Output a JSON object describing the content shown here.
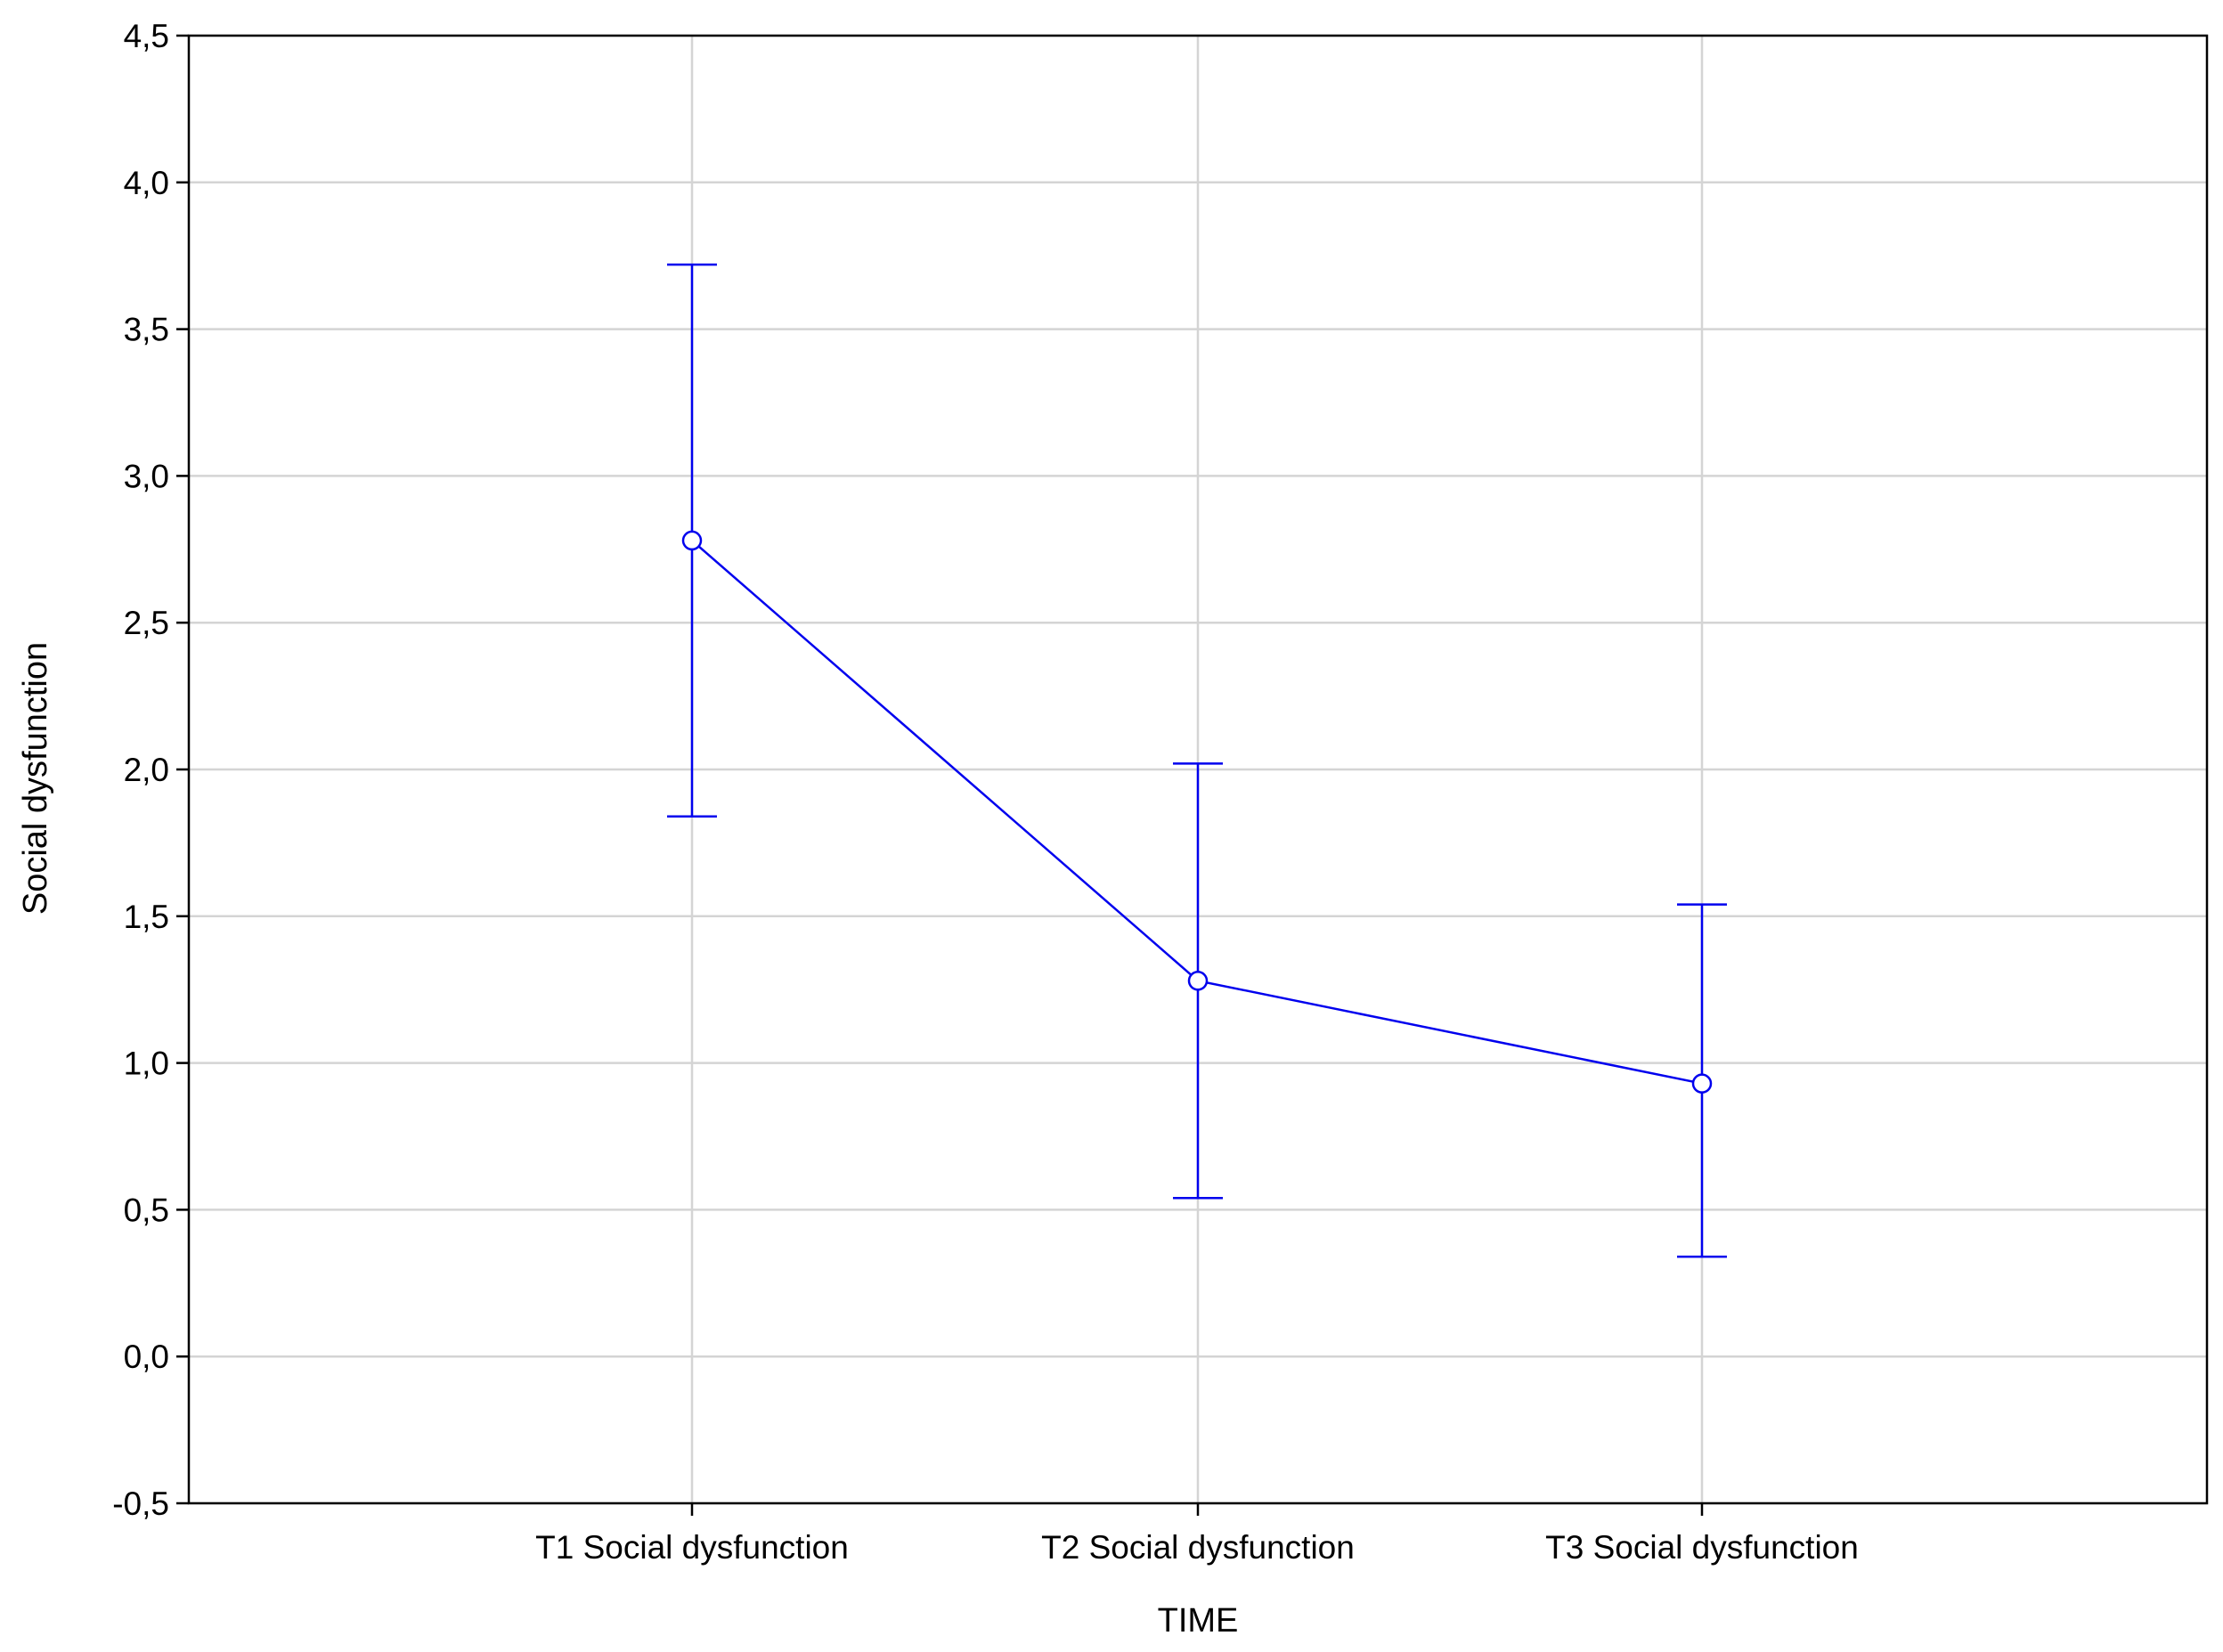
{
  "chart_data": {
    "type": "line",
    "title": "",
    "xlabel": "TIME",
    "ylabel": "Social dysfunction",
    "categories": [
      "T1 Social dysfunction",
      "T2 Social dysfunction",
      "T3 Social dysfunction"
    ],
    "series": [
      {
        "values": [
          2.78,
          1.28,
          0.93
        ],
        "error_low": [
          1.84,
          0.54,
          0.34
        ],
        "error_high": [
          3.72,
          2.02,
          1.54
        ]
      }
    ],
    "ylim": [
      -0.5,
      4.5
    ],
    "yticks": [
      -0.5,
      0.0,
      0.5,
      1.0,
      1.5,
      2.0,
      2.5,
      3.0,
      3.5,
      4.0,
      4.5
    ],
    "ytick_labels": [
      "-0,5",
      "0,0",
      "0,5",
      "1,0",
      "1,5",
      "2,0",
      "2,5",
      "3,0",
      "3,5",
      "4,0",
      "4,5"
    ],
    "grid": true,
    "colors": {
      "series": "#0000ee",
      "grid": "#d4d4d4",
      "frame": "#000000"
    }
  }
}
